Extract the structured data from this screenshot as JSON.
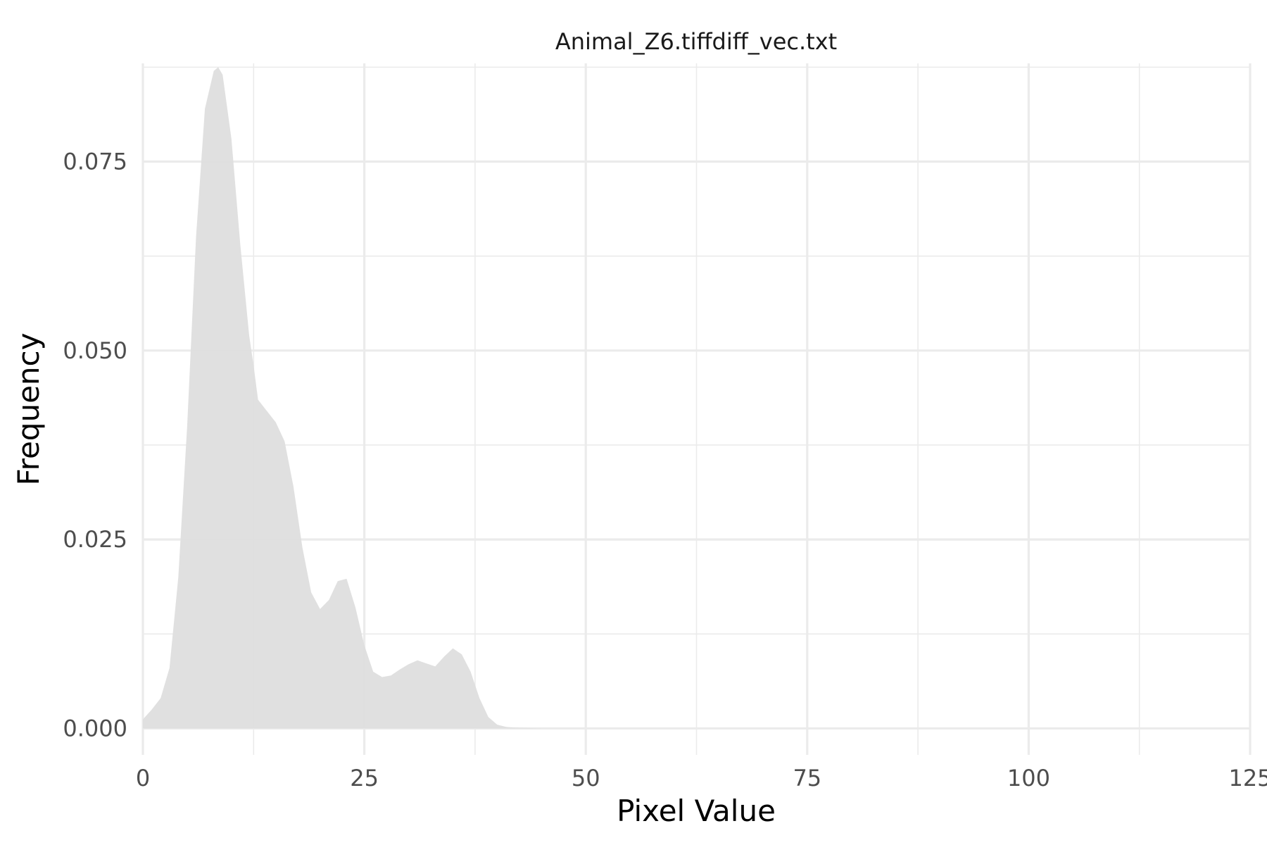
{
  "chart_data": {
    "type": "area",
    "title": "Animal_Z6.tiffdiff_vec.txt",
    "xlabel": "Pixel Value",
    "ylabel": "Frequency",
    "xlim": [
      0,
      125
    ],
    "ylim": [
      -0.0035,
      0.088
    ],
    "x_ticks": [
      0,
      25,
      50,
      75,
      100,
      125
    ],
    "x_tick_labels": [
      "0",
      "25",
      "50",
      "75",
      "100",
      "125"
    ],
    "y_ticks": [
      0,
      0.025,
      0.05,
      0.075
    ],
    "y_tick_labels": [
      "0.000",
      "0.025",
      "0.050",
      "0.075"
    ],
    "x_minor_ticks": [
      12.5,
      37.5,
      62.5,
      87.5,
      112.5
    ],
    "y_minor_ticks": [
      0.0125,
      0.0375,
      0.0625,
      0.0875
    ],
    "grid": true,
    "legend": "none",
    "fill_color": "#dedede",
    "series": [
      {
        "x": [
          0,
          1,
          2,
          3,
          4,
          5,
          6,
          7,
          8,
          8.5,
          9,
          10,
          11,
          12,
          12.5,
          13,
          14,
          15,
          16,
          17,
          18,
          19,
          20,
          21,
          22,
          23,
          24,
          25,
          26,
          27,
          28,
          29,
          30,
          31,
          32,
          33,
          34,
          35,
          36,
          37,
          38,
          39,
          40,
          41,
          42,
          45,
          50,
          60,
          80,
          100,
          125
        ],
        "y": [
          0.0012,
          0.0025,
          0.004,
          0.008,
          0.02,
          0.04,
          0.065,
          0.082,
          0.087,
          0.0875,
          0.0865,
          0.078,
          0.064,
          0.052,
          0.048,
          0.0435,
          0.042,
          0.0405,
          0.038,
          0.032,
          0.024,
          0.018,
          0.0158,
          0.017,
          0.0195,
          0.0198,
          0.016,
          0.011,
          0.0075,
          0.0068,
          0.007,
          0.0078,
          0.0085,
          0.009,
          0.0086,
          0.0082,
          0.0095,
          0.0106,
          0.0098,
          0.0075,
          0.004,
          0.0015,
          0.0005,
          0.0002,
          0.0001,
          0.0,
          0.0,
          0.0,
          0.0,
          0.0,
          0.0
        ]
      }
    ]
  }
}
